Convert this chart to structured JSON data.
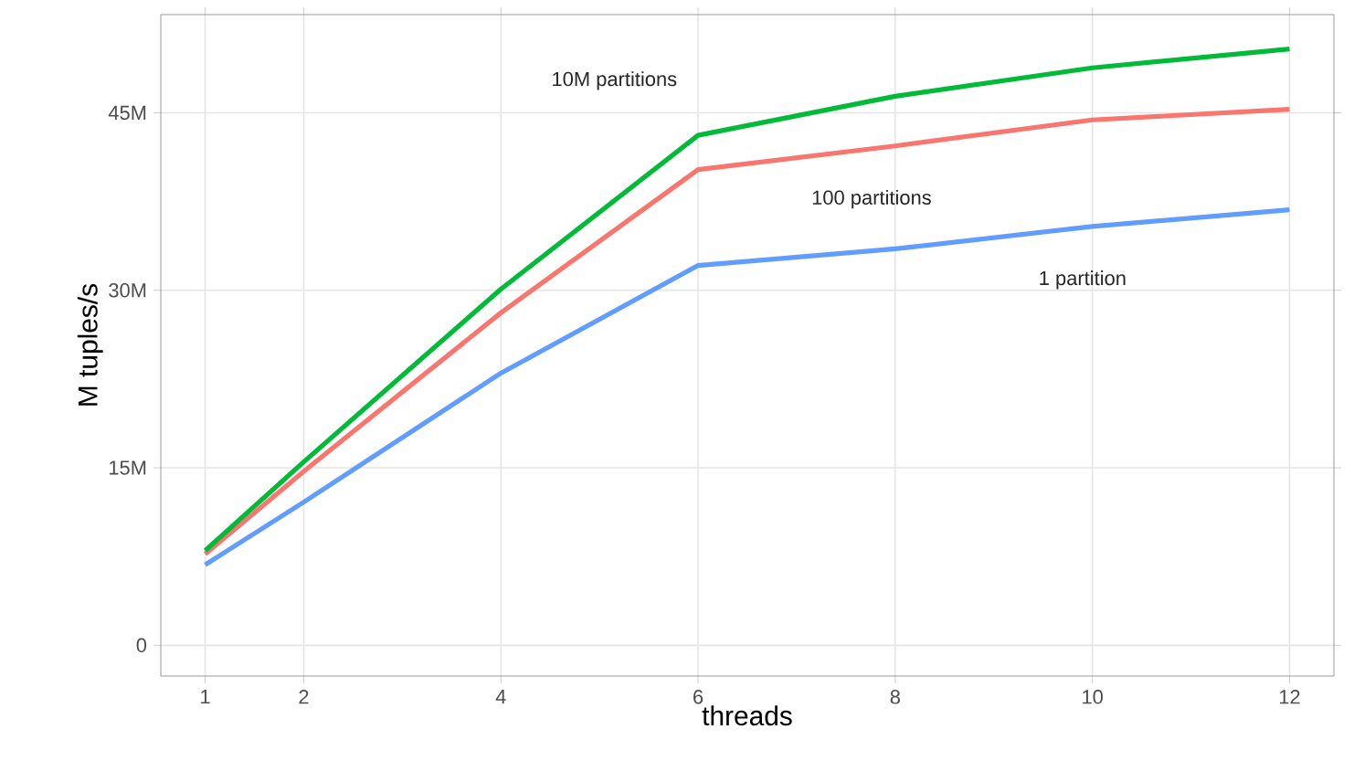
{
  "chart_data": {
    "type": "line",
    "xlabel": "threads",
    "ylabel": "M tuples/s",
    "x": [
      1,
      2,
      4,
      6,
      8,
      10,
      12
    ],
    "series": [
      {
        "name": "1 partition",
        "color": "#619cff",
        "values": [
          6.8,
          12.1,
          23.0,
          32.1,
          33.5,
          35.4,
          36.8
        ]
      },
      {
        "name": "100 partitions",
        "color": "#f8766d",
        "values": [
          7.7,
          14.7,
          28.1,
          40.2,
          42.2,
          44.4,
          45.3
        ]
      },
      {
        "name": "10M partitions",
        "color": "#00ba38",
        "values": [
          8.0,
          15.5,
          30.1,
          43.1,
          46.4,
          48.8,
          50.4
        ]
      }
    ],
    "xlim": [
      0.55,
      12.45
    ],
    "ylim": [
      -2.6,
      53.3
    ],
    "xticks": [
      1,
      2,
      4,
      6,
      8,
      10,
      12
    ],
    "yticks": [
      0,
      {
        "value": 15,
        "label": "15M"
      },
      {
        "value": 30,
        "label": "30M"
      },
      {
        "value": 45,
        "label": "45M"
      }
    ],
    "grid": true,
    "legend": false,
    "line_style": "solid",
    "marker": "none"
  }
}
